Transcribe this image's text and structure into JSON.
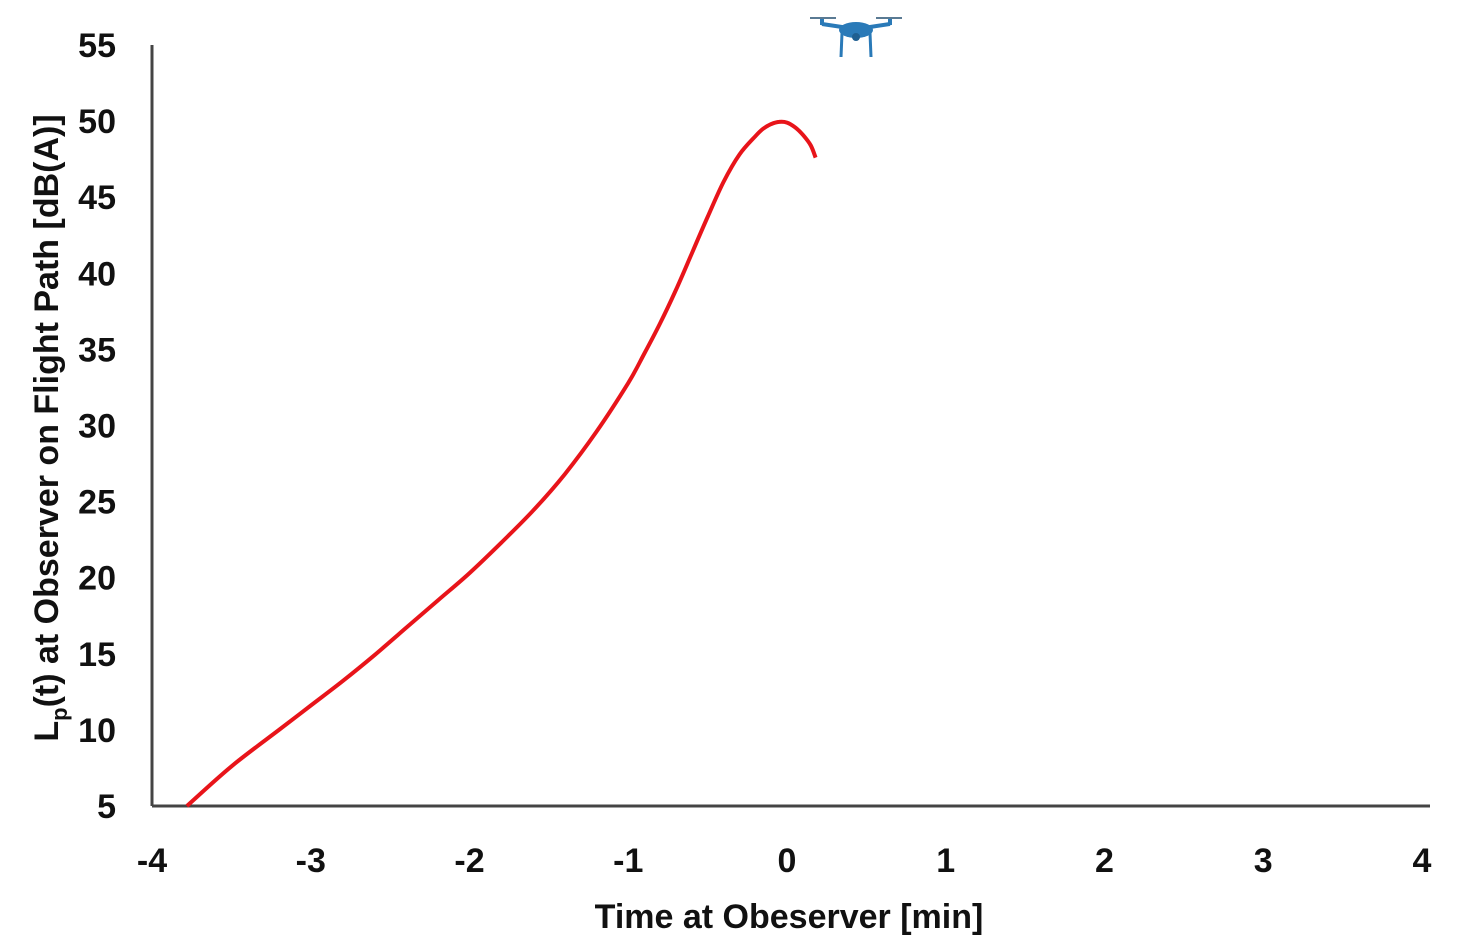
{
  "chart_data": {
    "type": "line",
    "xlabel": "Time at Obeserver [min]",
    "ylabel": {
      "main": "L",
      "subscript": "p",
      "rest": "(t)  at Observer on Flight Path [dB(A)]"
    },
    "xlim": [
      -4,
      4
    ],
    "ylim": [
      5,
      55
    ],
    "xticks": [
      "-4",
      "-3",
      "-2",
      "-1",
      "0",
      "1",
      "2",
      "3",
      "4"
    ],
    "yticks": [
      "5",
      "10",
      "15",
      "20",
      "25",
      "30",
      "35",
      "40",
      "45",
      "50",
      "55"
    ],
    "grid": false,
    "series": [
      {
        "color": "#e8141a",
        "x": [
          -3.78,
          -3.5,
          -3.2,
          -3.0,
          -2.8,
          -2.6,
          -2.4,
          -2.2,
          -2.0,
          -1.8,
          -1.6,
          -1.4,
          -1.2,
          -1.0,
          -0.9,
          -0.8,
          -0.7,
          -0.6,
          -0.5,
          -0.4,
          -0.3,
          -0.2,
          -0.15,
          -0.1,
          -0.05,
          0.0,
          0.05,
          0.1,
          0.15,
          0.18
        ],
        "y": [
          5.0,
          7.6,
          10.0,
          11.6,
          13.2,
          14.9,
          16.7,
          18.5,
          20.3,
          22.3,
          24.4,
          26.8,
          29.6,
          32.8,
          34.7,
          36.7,
          38.9,
          41.3,
          43.7,
          46.0,
          47.8,
          49.0,
          49.5,
          49.8,
          49.95,
          49.9,
          49.6,
          49.1,
          48.4,
          47.6
        ]
      }
    ],
    "annotations": [
      {
        "type": "icon",
        "name": "drone-icon",
        "color": "#2a7ab8",
        "x": 0.4
      }
    ]
  }
}
